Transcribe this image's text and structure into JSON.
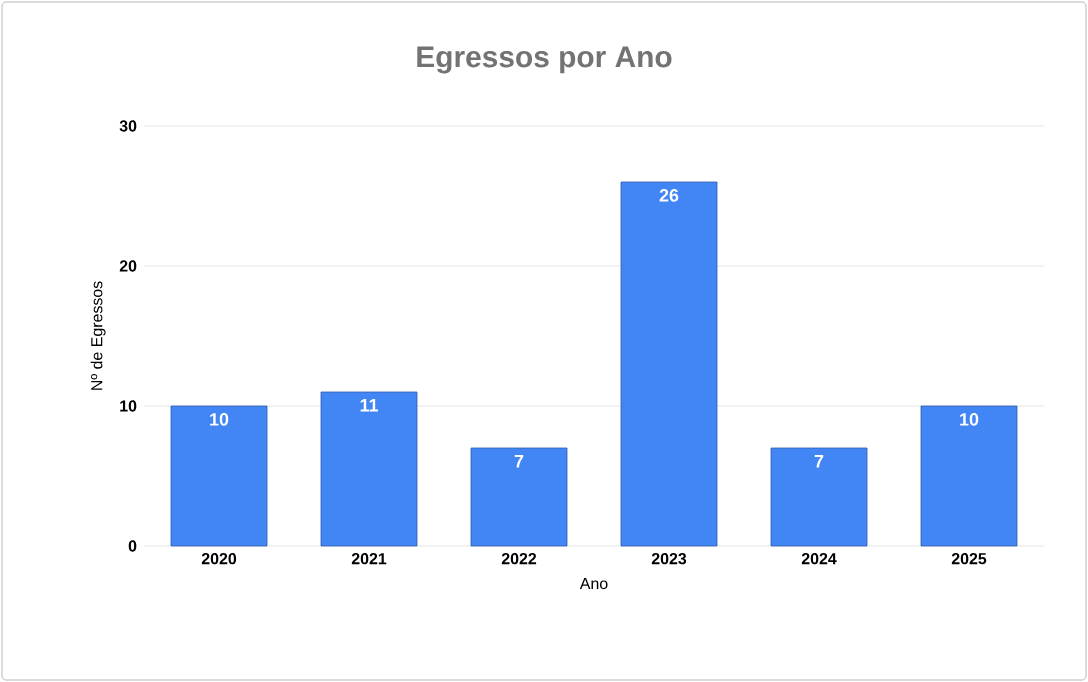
{
  "chart_data": {
    "type": "bar",
    "title": "Egressos por  Ano",
    "xlabel": "Ano",
    "ylabel": "Nº de Egressos",
    "categories": [
      "2020",
      "2021",
      "2022",
      "2023",
      "2024",
      "2025"
    ],
    "values": [
      10,
      11,
      7,
      26,
      7,
      10
    ],
    "color": "#4285f4",
    "ylim": [
      0,
      30
    ],
    "yticks": [
      0,
      10,
      20,
      30
    ],
    "grid": "y",
    "data_labels": true
  }
}
